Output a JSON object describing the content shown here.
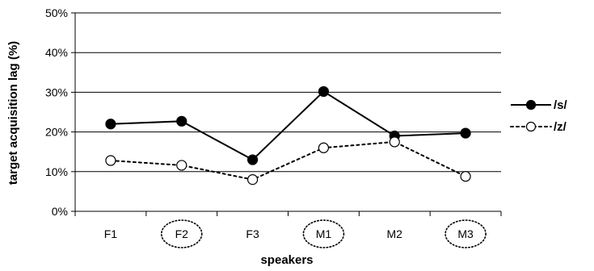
{
  "chart_data": {
    "type": "line",
    "title": "",
    "xlabel": "speakers",
    "ylabel": "target acquisition lag (%)",
    "categories": [
      "F1",
      "F2",
      "F3",
      "M1",
      "M2",
      "M3"
    ],
    "circled_categories": [
      "F2",
      "M1",
      "M3"
    ],
    "ylim": [
      0,
      50
    ],
    "yticks": [
      0,
      10,
      20,
      30,
      40,
      50
    ],
    "ytick_labels": [
      "0%",
      "10%",
      "20%",
      "30%",
      "40%",
      "50%"
    ],
    "grid": true,
    "legend_position": "right",
    "series": [
      {
        "name": "/s/",
        "values": [
          22,
          22.7,
          13,
          30.2,
          19,
          19.7
        ],
        "line_style": "solid",
        "marker": "filled-circle",
        "color": "#000000"
      },
      {
        "name": "/z/",
        "values": [
          12.8,
          11.6,
          8,
          16,
          17.5,
          8.8
        ],
        "line_style": "dotted",
        "marker": "open-circle",
        "color": "#000000"
      }
    ]
  }
}
